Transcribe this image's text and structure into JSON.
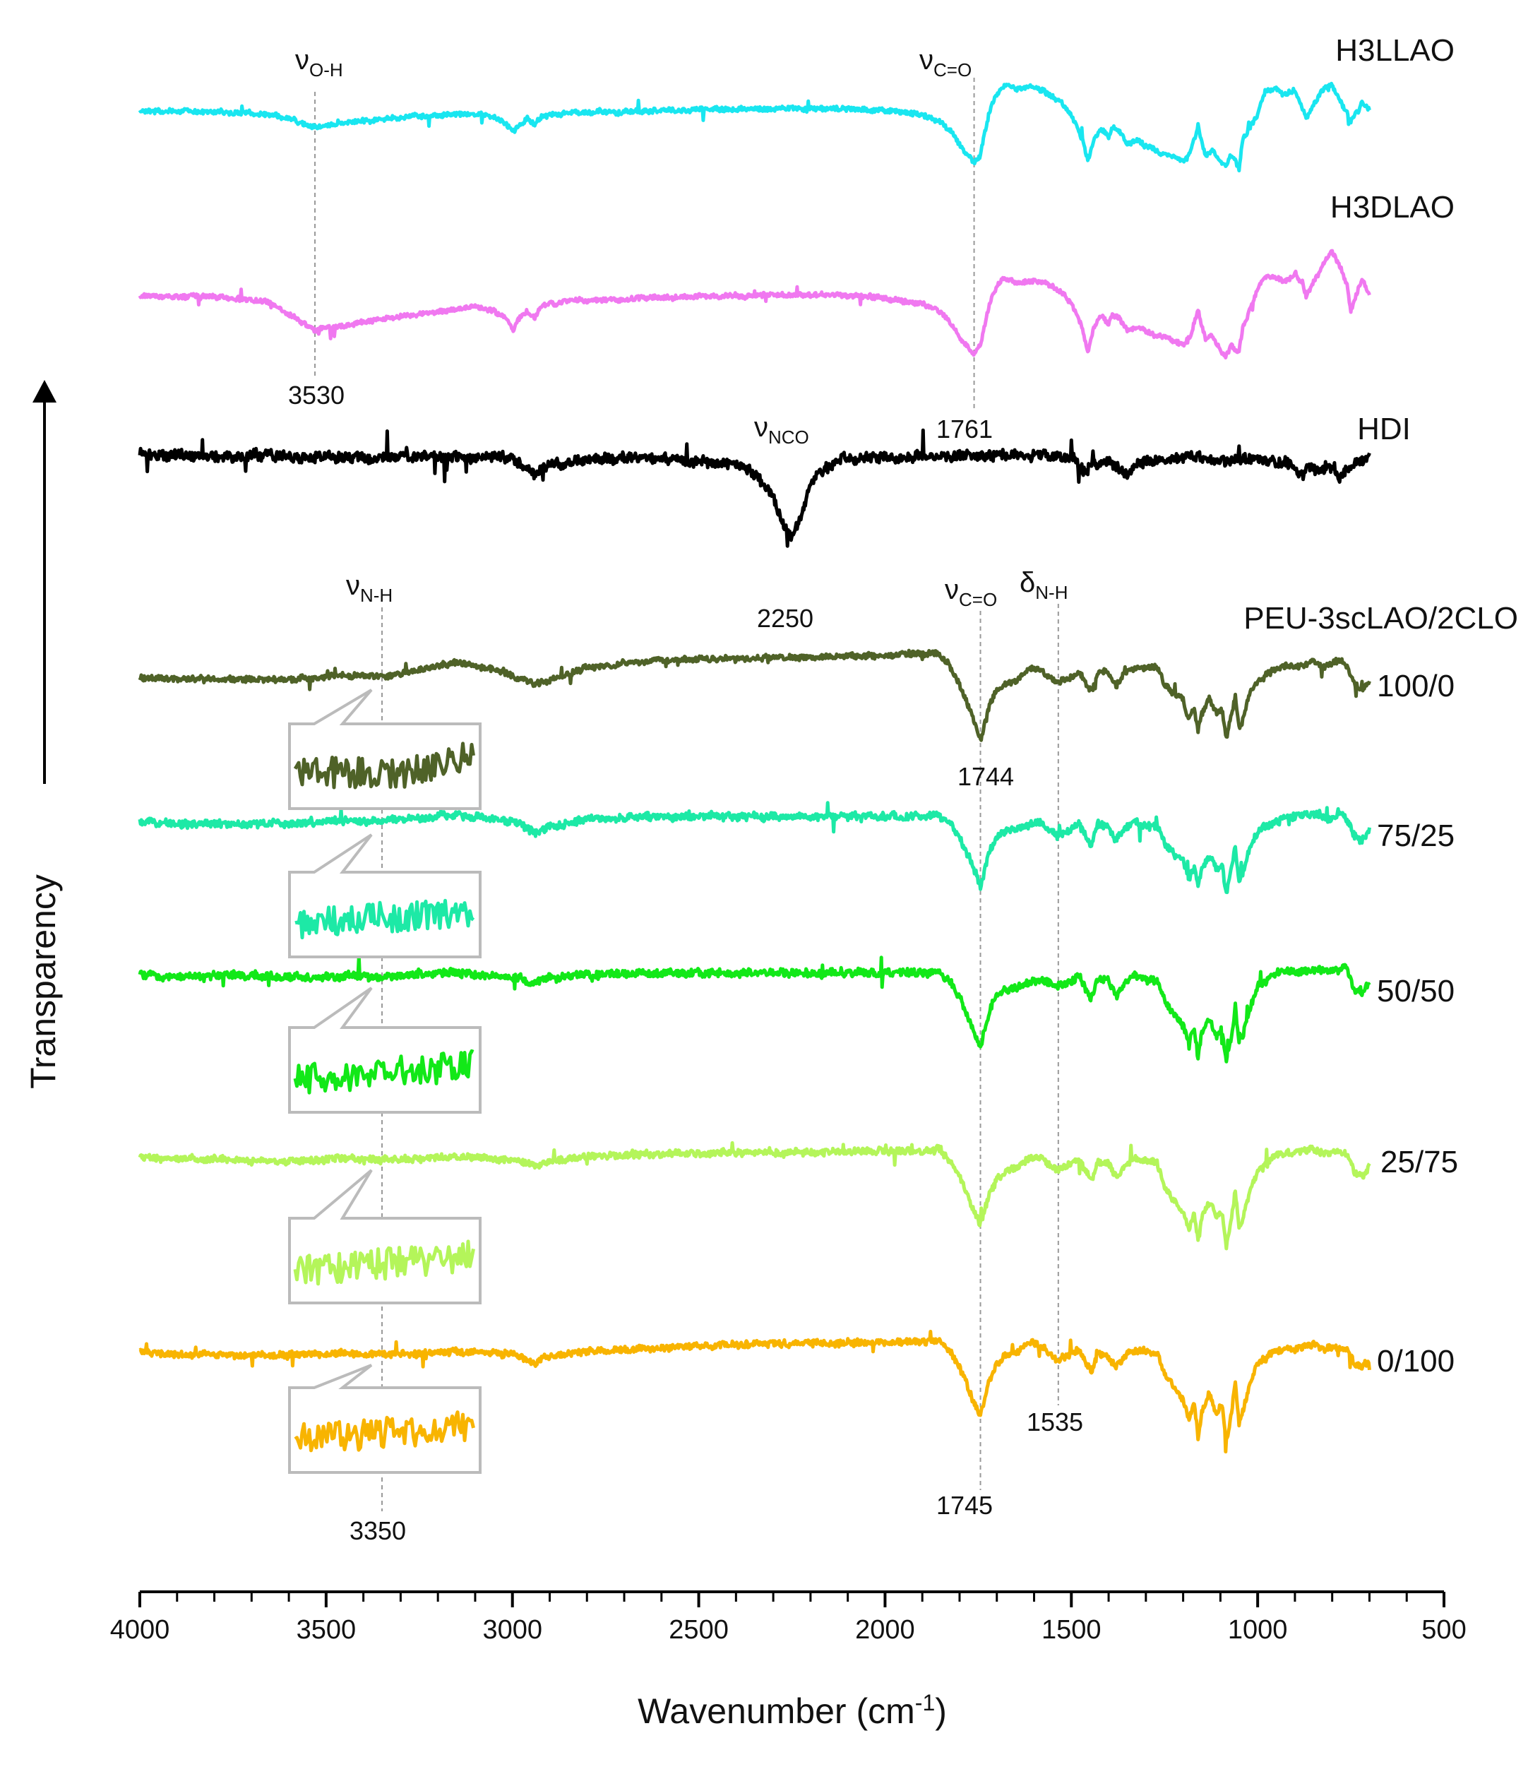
{
  "chart_data": {
    "type": "line",
    "title": "",
    "xlabel": "Wavenumber (cm-1)",
    "xlabel_base": "Wavenumber (cm",
    "xlabel_sup": "-1",
    "xlabel_end": ")",
    "ylabel": "Transparency",
    "xlim": [
      4000,
      500
    ],
    "xticks": [
      4000,
      3500,
      3000,
      2500,
      2000,
      1500,
      1000,
      500
    ],
    "xtick_labels": [
      "4000",
      "3500",
      "3000",
      "2500",
      "2000",
      "1500",
      "1000",
      "500"
    ],
    "stacked": true,
    "group_title": "PEU-3scLAO/2CLO",
    "series": [
      {
        "name": "H3LLAO",
        "label": "H3LLAO",
        "color": "#19e6f0",
        "noise": 1.0,
        "seed": 11,
        "x": [
          4000,
          3800,
          3650,
          3600,
          3530,
          3450,
          3300,
          3100,
          3050,
          3010,
          3000,
          2985,
          2960,
          2940,
          2920,
          2850,
          2700,
          2500,
          2300,
          2100,
          2000,
          1900,
          1850,
          1820,
          1790,
          1761,
          1745,
          1720,
          1700,
          1680,
          1650,
          1600,
          1570,
          1530,
          1500,
          1470,
          1455,
          1440,
          1420,
          1400,
          1390,
          1370,
          1350,
          1320,
          1300,
          1250,
          1200,
          1180,
          1160,
          1150,
          1140,
          1120,
          1100,
          1085,
          1070,
          1050,
          1040,
          1000,
          980,
          950,
          930,
          900,
          880,
          870,
          860,
          830,
          800,
          780,
          760,
          750,
          740,
          720,
          700
        ],
        "y": [
          0,
          0,
          4,
          10,
          22,
          16,
          8,
          3,
          8,
          20,
          30,
          20,
          10,
          20,
          6,
          2,
          0,
          -3,
          -4,
          -4,
          -2,
          5,
          15,
          30,
          55,
          72,
          62,
          0,
          -25,
          -38,
          -32,
          -35,
          -28,
          -15,
          5,
          40,
          70,
          40,
          22,
          35,
          20,
          28,
          45,
          40,
          50,
          60,
          70,
          55,
          20,
          45,
          65,
          55,
          70,
          75,
          60,
          80,
          40,
          5,
          -28,
          -32,
          -25,
          -30,
          -5,
          10,
          0,
          -28,
          -38,
          -15,
          0,
          15,
          5,
          -10,
          -2
        ]
      },
      {
        "name": "H3DLAO",
        "label": "H3DLAO",
        "color": "#f078f0",
        "noise": 1.0,
        "seed": 23,
        "x": [
          4000,
          3800,
          3650,
          3600,
          3530,
          3450,
          3300,
          3100,
          3050,
          3010,
          3000,
          2985,
          2960,
          2940,
          2920,
          2850,
          2700,
          2500,
          2300,
          2100,
          2000,
          1900,
          1850,
          1820,
          1790,
          1761,
          1745,
          1720,
          1700,
          1680,
          1650,
          1600,
          1570,
          1530,
          1500,
          1470,
          1455,
          1440,
          1420,
          1400,
          1390,
          1370,
          1350,
          1320,
          1300,
          1250,
          1200,
          1180,
          1160,
          1150,
          1140,
          1120,
          1100,
          1085,
          1070,
          1050,
          1040,
          1000,
          980,
          950,
          930,
          900,
          880,
          870,
          860,
          830,
          800,
          780,
          760,
          750,
          740,
          720,
          700
        ],
        "y": [
          0,
          0,
          8,
          25,
          48,
          40,
          28,
          15,
          20,
          35,
          48,
          32,
          20,
          30,
          12,
          6,
          4,
          0,
          -2,
          -2,
          2,
          10,
          22,
          40,
          65,
          82,
          70,
          10,
          -15,
          -28,
          -20,
          -22,
          -18,
          -8,
          10,
          45,
          80,
          45,
          25,
          40,
          25,
          32,
          48,
          42,
          50,
          58,
          68,
          55,
          20,
          40,
          60,
          55,
          75,
          85,
          70,
          80,
          45,
          -10,
          -30,
          -28,
          -20,
          -30,
          -20,
          0,
          -10,
          -40,
          -65,
          -45,
          -15,
          20,
          5,
          -25,
          0
        ]
      },
      {
        "name": "HDI",
        "label": "HDI",
        "color": "#000000",
        "noise": 2.2,
        "seed": 37,
        "x": [
          4000,
          3700,
          3200,
          3000,
          2960,
          2940,
          2920,
          2880,
          2860,
          2840,
          2800,
          2600,
          2400,
          2350,
          2300,
          2280,
          2250,
          2220,
          2200,
          2150,
          2100,
          1900,
          1700,
          1500,
          1480,
          1460,
          1440,
          1400,
          1370,
          1350,
          1320,
          1200,
          1000,
          930,
          900,
          880,
          860,
          840,
          800,
          780,
          760,
          720,
          700
        ],
        "y": [
          0,
          2,
          3,
          6,
          20,
          28,
          18,
          8,
          16,
          10,
          5,
          6,
          14,
          28,
          60,
          90,
          118,
          80,
          40,
          14,
          6,
          3,
          0,
          2,
          14,
          24,
          14,
          8,
          24,
          30,
          12,
          4,
          6,
          10,
          20,
          28,
          18,
          22,
          15,
          30,
          18,
          8,
          4
        ]
      },
      {
        "name": "100/0",
        "label": "100/0",
        "color": "#4f6228",
        "noise": 1.2,
        "seed": 41,
        "x": [
          4000,
          3800,
          3600,
          3450,
          3350,
          3250,
          3150,
          3050,
          2980,
          2940,
          2900,
          2800,
          2600,
          2400,
          2200,
          2000,
          1900,
          1860,
          1830,
          1800,
          1770,
          1744,
          1720,
          1700,
          1680,
          1650,
          1620,
          1600,
          1580,
          1560,
          1535,
          1510,
          1480,
          1460,
          1445,
          1430,
          1400,
          1380,
          1360,
          1330,
          1300,
          1270,
          1250,
          1230,
          1200,
          1185,
          1170,
          1160,
          1150,
          1130,
          1110,
          1095,
          1085,
          1070,
          1060,
          1050,
          1040,
          1020,
          1000,
          960,
          920,
          900,
          870,
          850,
          820,
          800,
          780,
          760,
          740,
          720,
          700
        ],
        "y": [
          0,
          2,
          2,
          -4,
          -2,
          -12,
          -22,
          -12,
          0,
          10,
          3,
          -15,
          -25,
          -28,
          -30,
          -32,
          -34,
          -35,
          -20,
          10,
          50,
          88,
          40,
          18,
          10,
          5,
          -10,
          -15,
          -10,
          -2,
          5,
          2,
          -10,
          10,
          20,
          -10,
          -8,
          12,
          -5,
          -15,
          -12,
          -18,
          10,
          20,
          30,
          60,
          45,
          75,
          50,
          30,
          50,
          45,
          85,
          55,
          25,
          70,
          60,
          20,
          5,
          -10,
          -18,
          -15,
          -20,
          -25,
          -15,
          -20,
          -25,
          -18,
          10,
          15,
          5
        ]
      },
      {
        "name": "75/25",
        "label": "75/25",
        "color": "#1de9a6",
        "noise": 1.6,
        "seed": 53,
        "x": [
          4000,
          3800,
          3600,
          3450,
          3350,
          3250,
          3150,
          3050,
          2980,
          2940,
          2900,
          2800,
          2600,
          2400,
          2200,
          2000,
          1900,
          1860,
          1830,
          1800,
          1770,
          1744,
          1720,
          1700,
          1680,
          1650,
          1620,
          1600,
          1580,
          1560,
          1535,
          1510,
          1480,
          1460,
          1445,
          1430,
          1400,
          1380,
          1360,
          1330,
          1300,
          1270,
          1250,
          1230,
          1200,
          1185,
          1170,
          1160,
          1150,
          1130,
          1110,
          1095,
          1085,
          1070,
          1060,
          1050,
          1040,
          1020,
          1000,
          960,
          920,
          900,
          870,
          850,
          820,
          800,
          780,
          760,
          740,
          720,
          700
        ],
        "y": [
          0,
          2,
          2,
          -4,
          -2,
          -6,
          -12,
          -6,
          0,
          15,
          5,
          -5,
          -8,
          -8,
          -8,
          -8,
          -9,
          -10,
          0,
          20,
          55,
          90,
          40,
          20,
          12,
          10,
          5,
          -2,
          0,
          10,
          18,
          12,
          0,
          20,
          30,
          2,
          5,
          25,
          10,
          0,
          5,
          5,
          30,
          40,
          55,
          80,
          60,
          95,
          65,
          45,
          65,
          60,
          100,
          65,
          35,
          85,
          70,
          35,
          15,
          0,
          -10,
          -8,
          -12,
          -10,
          -5,
          -8,
          -10,
          -5,
          20,
          25,
          10
        ]
      },
      {
        "name": "50/50",
        "label": "50/50",
        "color": "#12e818",
        "noise": 1.6,
        "seed": 67,
        "x": [
          4000,
          3800,
          3600,
          3450,
          3350,
          3250,
          3150,
          3050,
          2980,
          2940,
          2900,
          2800,
          2600,
          2400,
          2200,
          2000,
          1900,
          1860,
          1830,
          1800,
          1770,
          1744,
          1720,
          1700,
          1680,
          1650,
          1620,
          1600,
          1580,
          1560,
          1535,
          1510,
          1480,
          1460,
          1445,
          1430,
          1400,
          1380,
          1360,
          1330,
          1300,
          1270,
          1250,
          1230,
          1200,
          1185,
          1170,
          1160,
          1150,
          1130,
          1110,
          1095,
          1085,
          1070,
          1060,
          1050,
          1040,
          1020,
          1000,
          960,
          920,
          900,
          870,
          850,
          820,
          800,
          780,
          760,
          740,
          720,
          700
        ],
        "y": [
          0,
          0,
          2,
          0,
          2,
          -2,
          -4,
          0,
          2,
          10,
          3,
          -2,
          -4,
          -4,
          -4,
          -5,
          -5,
          -6,
          5,
          30,
          70,
          100,
          50,
          25,
          20,
          18,
          10,
          5,
          5,
          12,
          15,
          10,
          0,
          20,
          32,
          5,
          8,
          28,
          12,
          0,
          5,
          5,
          35,
          50,
          70,
          95,
          70,
          115,
          80,
          60,
          85,
          75,
          120,
          85,
          45,
          100,
          85,
          45,
          15,
          0,
          -8,
          -5,
          -8,
          -10,
          -5,
          -8,
          -10,
          -8,
          20,
          25,
          10
        ]
      },
      {
        "name": "25/75",
        "label": "25/75",
        "color": "#b4f55a",
        "noise": 1.4,
        "seed": 79,
        "x": [
          4000,
          3800,
          3600,
          3450,
          3350,
          3250,
          3150,
          3050,
          2980,
          2940,
          2900,
          2800,
          2600,
          2400,
          2200,
          2000,
          1900,
          1860,
          1830,
          1800,
          1770,
          1744,
          1720,
          1700,
          1680,
          1650,
          1620,
          1600,
          1580,
          1560,
          1535,
          1510,
          1480,
          1460,
          1445,
          1430,
          1400,
          1380,
          1360,
          1330,
          1300,
          1270,
          1250,
          1230,
          1200,
          1185,
          1170,
          1160,
          1150,
          1130,
          1110,
          1095,
          1085,
          1070,
          1060,
          1050,
          1040,
          1020,
          1000,
          960,
          920,
          900,
          870,
          850,
          820,
          800,
          780,
          760,
          740,
          720,
          700
        ],
        "y": [
          0,
          2,
          4,
          0,
          2,
          0,
          -2,
          0,
          3,
          12,
          4,
          -2,
          -6,
          -8,
          -8,
          -10,
          -10,
          -12,
          0,
          25,
          65,
          95,
          50,
          28,
          20,
          14,
          4,
          0,
          0,
          10,
          15,
          10,
          0,
          20,
          32,
          5,
          8,
          28,
          12,
          0,
          5,
          5,
          40,
          55,
          75,
          100,
          75,
          120,
          85,
          60,
          85,
          75,
          125,
          85,
          45,
          100,
          85,
          45,
          20,
          0,
          -8,
          -8,
          -10,
          -12,
          -5,
          -8,
          -10,
          -5,
          20,
          25,
          10
        ]
      },
      {
        "name": "0/100",
        "label": "0/100",
        "color": "#f8b400",
        "noise": 1.4,
        "seed": 97,
        "x": [
          4000,
          3800,
          3600,
          3450,
          3350,
          3250,
          3150,
          3050,
          2980,
          2940,
          2900,
          2800,
          2600,
          2400,
          2200,
          2000,
          1900,
          1860,
          1830,
          1800,
          1770,
          1745,
          1720,
          1700,
          1680,
          1650,
          1620,
          1600,
          1580,
          1560,
          1535,
          1510,
          1480,
          1460,
          1445,
          1430,
          1400,
          1380,
          1360,
          1330,
          1300,
          1270,
          1250,
          1230,
          1200,
          1185,
          1170,
          1160,
          1150,
          1130,
          1110,
          1095,
          1085,
          1070,
          1060,
          1050,
          1040,
          1020,
          1000,
          960,
          920,
          900,
          870,
          850,
          820,
          800,
          780,
          760,
          740,
          720,
          700
        ],
        "y": [
          0,
          2,
          3,
          0,
          2,
          0,
          -3,
          0,
          3,
          14,
          4,
          -2,
          -8,
          -12,
          -14,
          -15,
          -16,
          -18,
          -5,
          20,
          60,
          88,
          40,
          15,
          5,
          0,
          -12,
          -15,
          -10,
          0,
          8,
          5,
          -5,
          15,
          25,
          0,
          5,
          20,
          5,
          -5,
          0,
          0,
          30,
          45,
          65,
          95,
          70,
          120,
          85,
          55,
          85,
          70,
          130,
          85,
          40,
          100,
          85,
          40,
          15,
          0,
          -8,
          -5,
          -10,
          -12,
          -5,
          -8,
          -10,
          -5,
          15,
          20,
          10
        ]
      }
    ],
    "annotations": [
      {
        "sym": "ν",
        "sub": "O-H",
        "value": "3530"
      },
      {
        "sym": "ν",
        "sub": "C=O",
        "value": "1761"
      },
      {
        "sym": "ν",
        "sub": "NCO",
        "value": "2250"
      },
      {
        "sym": "ν",
        "sub": "N-H",
        "value": "3350"
      },
      {
        "sym": "ν",
        "sub": "C=O",
        "value": "1744"
      },
      {
        "sym": "δ",
        "sub": "N-H",
        "value": "1535"
      },
      {
        "sym": "",
        "sub": "",
        "value": "1745"
      }
    ]
  }
}
